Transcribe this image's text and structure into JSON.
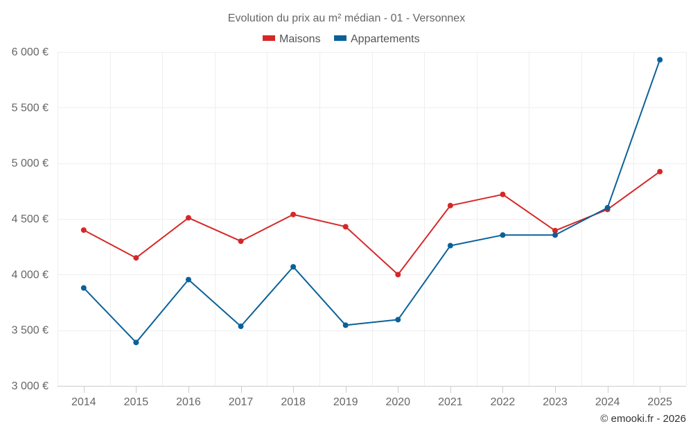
{
  "chart_data": {
    "type": "line",
    "title": "Evolution du prix au m² médian - 01 - Versonnex",
    "categories": [
      "2014",
      "2015",
      "2016",
      "2017",
      "2018",
      "2019",
      "2020",
      "2021",
      "2022",
      "2023",
      "2024",
      "2025"
    ],
    "series": [
      {
        "name": "Maisons",
        "color": "#d62728",
        "values": [
          4400,
          4150,
          4510,
          4300,
          4540,
          4430,
          4000,
          4620,
          4720,
          4395,
          4585,
          4925
        ]
      },
      {
        "name": "Appartements",
        "color": "#0a6199",
        "values": [
          3880,
          3390,
          3955,
          3535,
          4070,
          3545,
          3595,
          4260,
          4355,
          4355,
          4600,
          5930
        ]
      }
    ],
    "ylim": [
      3000,
      6000
    ],
    "y_ticks": [
      3000,
      3500,
      4000,
      4500,
      5000,
      5500,
      6000
    ],
    "y_tick_labels": [
      "3 000 €",
      "3 500 €",
      "4 000 €",
      "4 500 €",
      "5 000 €",
      "5 500 €",
      "6 000 €"
    ],
    "xlabel": "",
    "ylabel": "",
    "grid": true,
    "legend_position": "top-center"
  },
  "credit": "© emooki.fr - 2026"
}
